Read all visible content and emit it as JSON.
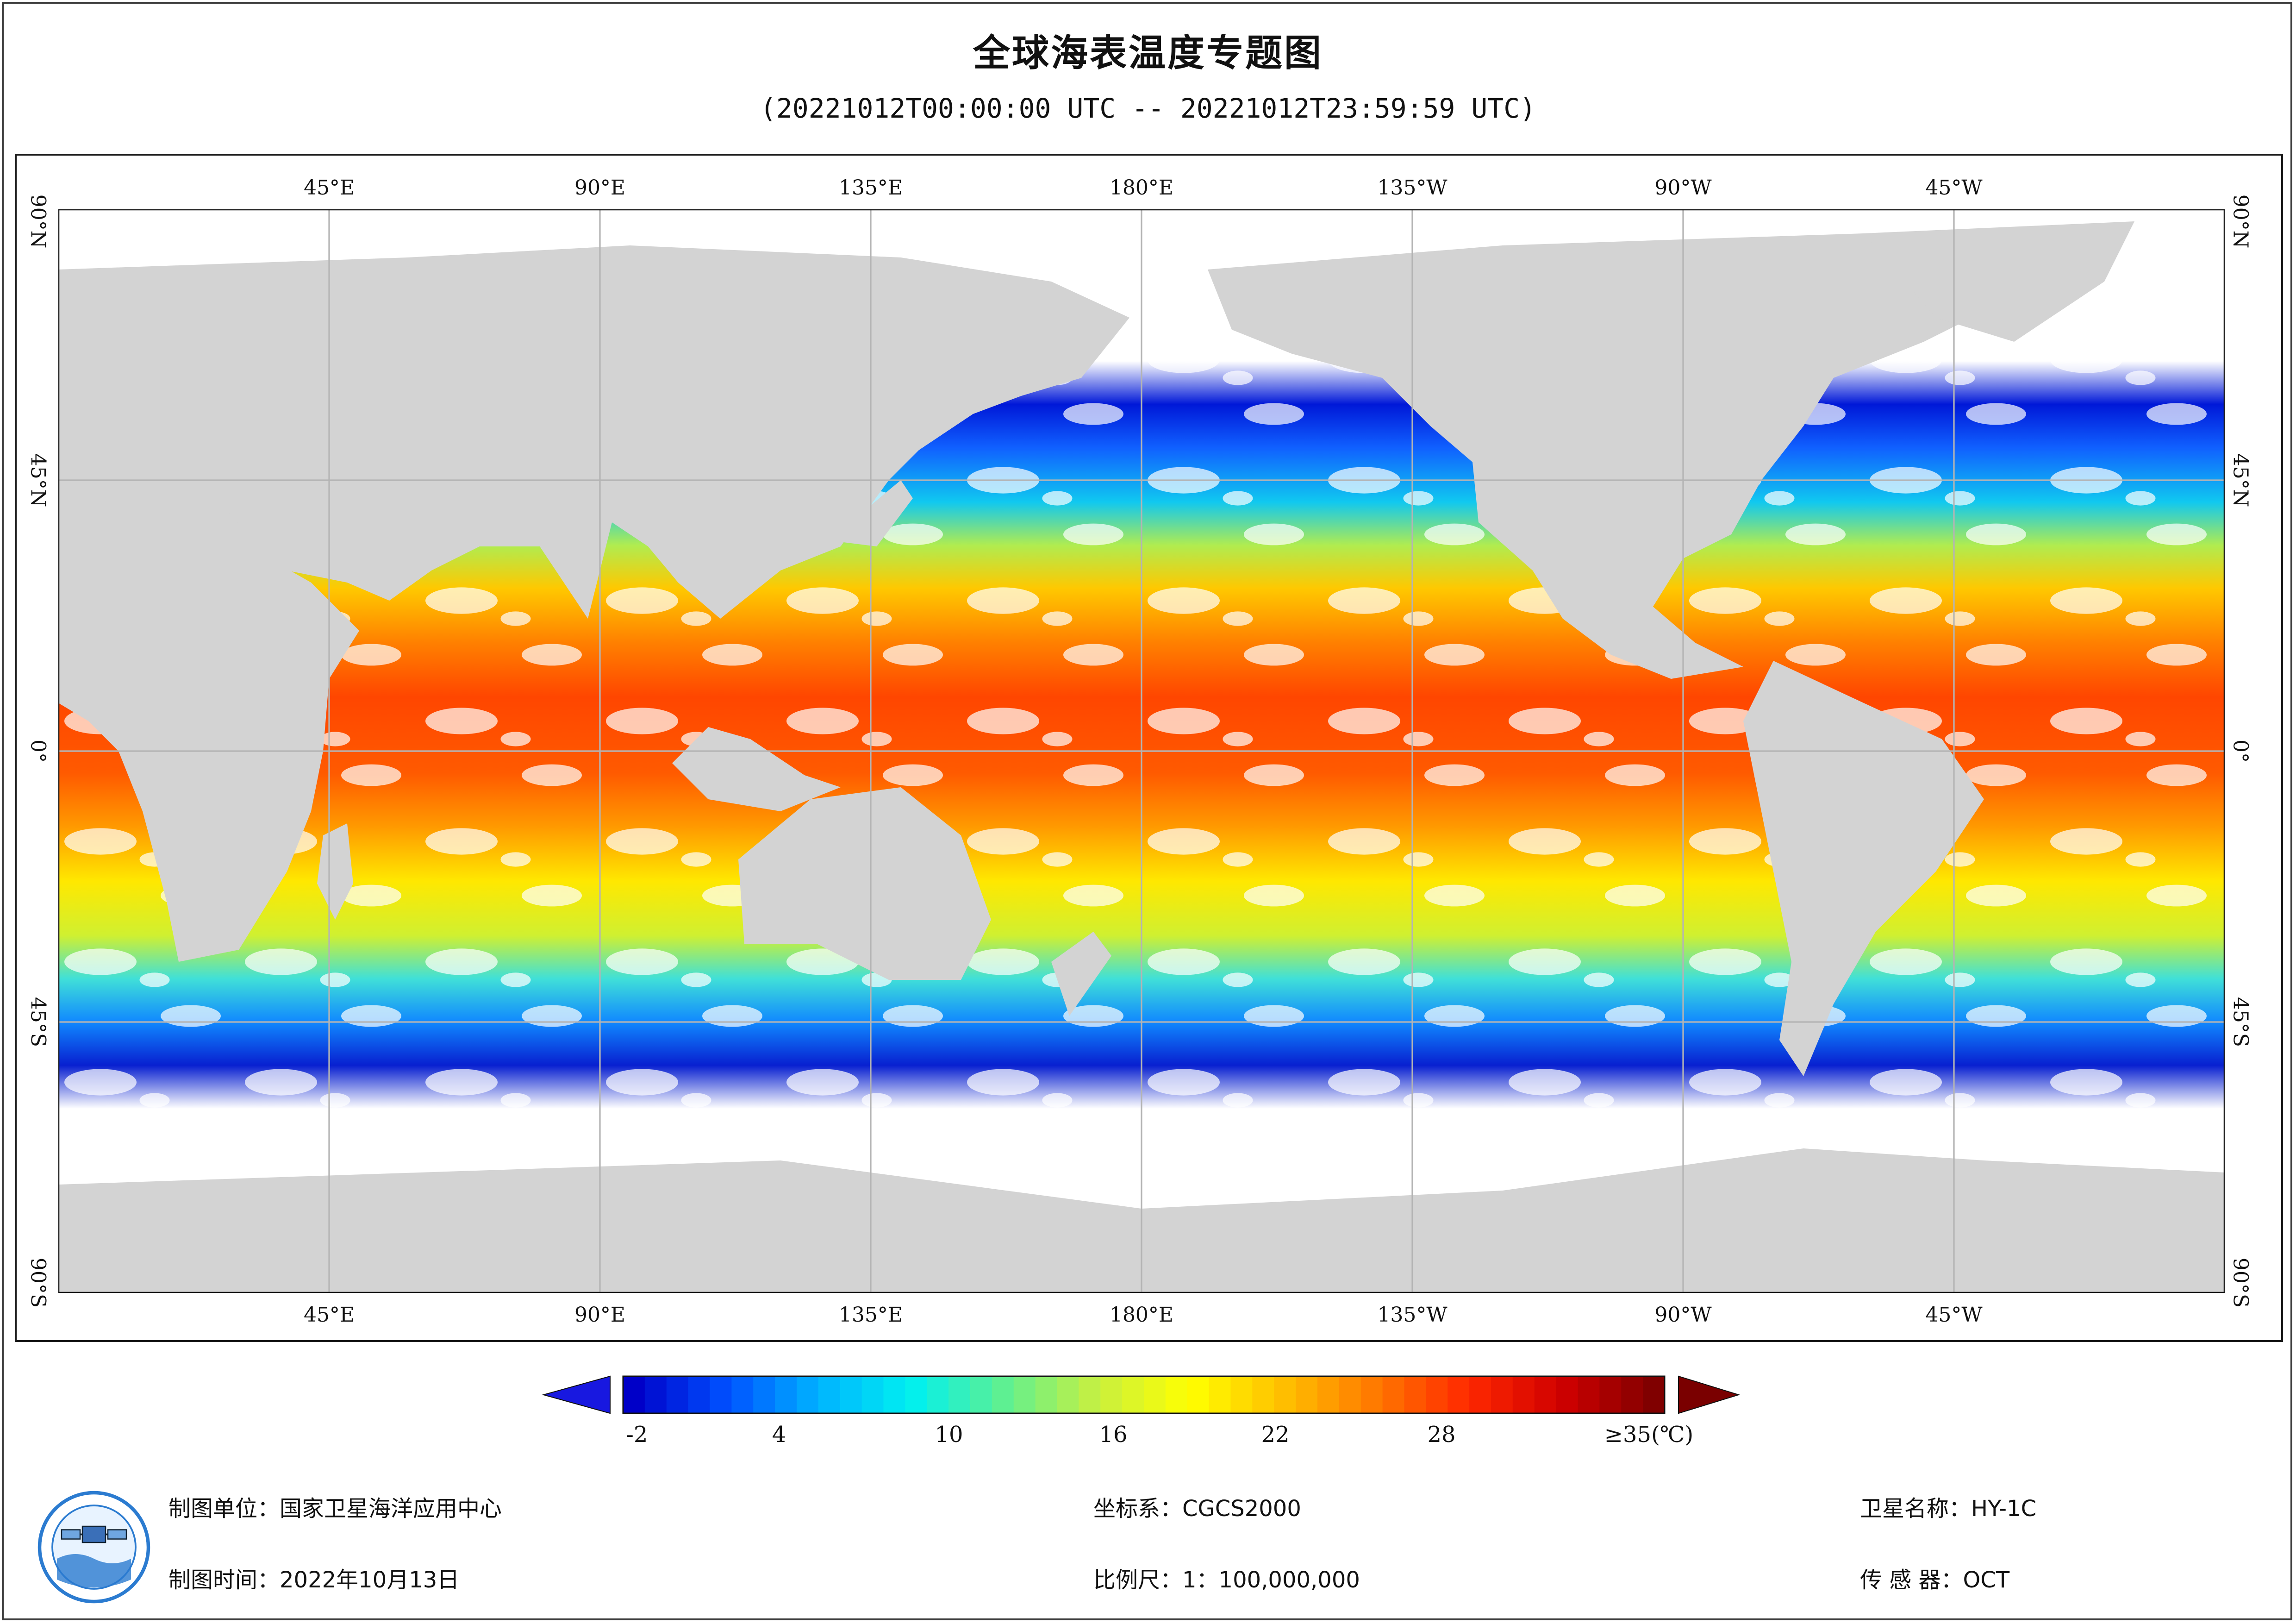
{
  "header": {
    "title": "全球海表温度专题图",
    "subtitle": "(20221012T00:00:00 UTC -- 20221012T23:59:59 UTC)"
  },
  "map": {
    "projection": "equirectangular",
    "lon_range": [
      0,
      360
    ],
    "lat_range": [
      -90,
      90
    ],
    "gridlines": true,
    "longitude_labels": [
      "45°E",
      "90°E",
      "135°E",
      "180°E",
      "135°W",
      "90°W",
      "45°W"
    ],
    "latitude_labels": [
      "90°N",
      "45°N",
      "0°",
      "45°S",
      "90°S"
    ],
    "colors": {
      "land": "#d3d3d3",
      "no_data": "#ffffff",
      "gridline": "#b4b4b4"
    }
  },
  "legend": {
    "ticks": [
      "-2",
      "4",
      "10",
      "16",
      "22",
      "28",
      "≥35(℃)"
    ],
    "range": [
      -3,
      35
    ],
    "colormap": [
      "#0000c8",
      "#0050ff",
      "#00b4ff",
      "#00f0f0",
      "#60f090",
      "#c8f040",
      "#ffff00",
      "#ffc000",
      "#ff7800",
      "#ff2800",
      "#d00000",
      "#800000"
    ],
    "low_arrow_color": "#1818e0",
    "high_arrow_color": "#7a0000"
  },
  "footer": {
    "agency": "制图单位：国家卫星海洋应用中心",
    "date": "制图时间：2022年10月13日",
    "coord_system": "坐标系：CGCS2000",
    "scale": "比例尺：1：100,000,000",
    "satellite": "卫星名称：HY-1C",
    "sensor": "传  感  器：OCT"
  }
}
